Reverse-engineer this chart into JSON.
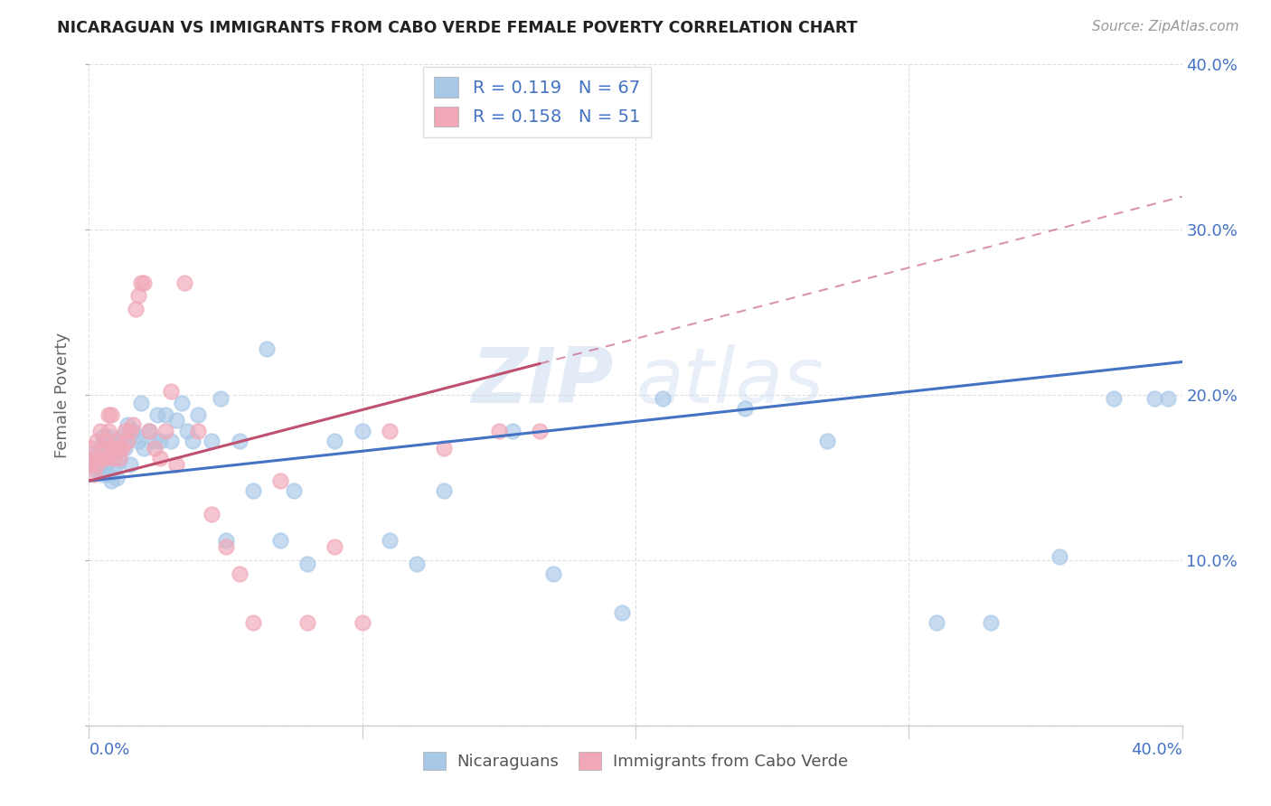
{
  "title": "NICARAGUAN VS IMMIGRANTS FROM CABO VERDE FEMALE POVERTY CORRELATION CHART",
  "source": "Source: ZipAtlas.com",
  "ylabel": "Female Poverty",
  "xlim": [
    0.0,
    0.4
  ],
  "ylim": [
    0.0,
    0.4
  ],
  "xticks": [
    0.0,
    0.1,
    0.2,
    0.3,
    0.4
  ],
  "yticks": [
    0.0,
    0.1,
    0.2,
    0.3,
    0.4
  ],
  "blue_color": "#a8c8e8",
  "pink_color": "#f0a8b8",
  "blue_line_color": "#4472c4",
  "pink_line_color": "#c05070",
  "R_blue": 0.119,
  "N_blue": 67,
  "R_pink": 0.158,
  "N_pink": 51,
  "legend_label_blue": "Nicaraguans",
  "legend_label_pink": "Immigrants from Cabo Verde",
  "blue_x": [
    0.001,
    0.002,
    0.002,
    0.003,
    0.003,
    0.004,
    0.004,
    0.005,
    0.005,
    0.005,
    0.006,
    0.006,
    0.007,
    0.007,
    0.008,
    0.008,
    0.009,
    0.009,
    0.01,
    0.01,
    0.011,
    0.012,
    0.013,
    0.014,
    0.015,
    0.016,
    0.017,
    0.018,
    0.019,
    0.02,
    0.022,
    0.024,
    0.025,
    0.026,
    0.028,
    0.03,
    0.032,
    0.034,
    0.036,
    0.038,
    0.04,
    0.045,
    0.048,
    0.05,
    0.055,
    0.06,
    0.065,
    0.07,
    0.075,
    0.08,
    0.09,
    0.1,
    0.11,
    0.12,
    0.13,
    0.155,
    0.17,
    0.195,
    0.21,
    0.24,
    0.27,
    0.31,
    0.33,
    0.355,
    0.375,
    0.39,
    0.395
  ],
  "blue_y": [
    0.16,
    0.155,
    0.165,
    0.158,
    0.162,
    0.155,
    0.168,
    0.152,
    0.175,
    0.17,
    0.158,
    0.17,
    0.152,
    0.175,
    0.148,
    0.165,
    0.155,
    0.17,
    0.15,
    0.172,
    0.16,
    0.175,
    0.168,
    0.182,
    0.158,
    0.178,
    0.175,
    0.172,
    0.195,
    0.168,
    0.178,
    0.172,
    0.188,
    0.172,
    0.188,
    0.172,
    0.185,
    0.195,
    0.178,
    0.172,
    0.188,
    0.172,
    0.198,
    0.112,
    0.172,
    0.142,
    0.228,
    0.112,
    0.142,
    0.098,
    0.172,
    0.178,
    0.112,
    0.098,
    0.142,
    0.178,
    0.092,
    0.068,
    0.198,
    0.192,
    0.172,
    0.062,
    0.062,
    0.102,
    0.198,
    0.198,
    0.198
  ],
  "pink_x": [
    0.001,
    0.001,
    0.002,
    0.002,
    0.003,
    0.003,
    0.004,
    0.004,
    0.005,
    0.005,
    0.006,
    0.006,
    0.007,
    0.007,
    0.008,
    0.008,
    0.009,
    0.009,
    0.01,
    0.01,
    0.011,
    0.011,
    0.012,
    0.013,
    0.014,
    0.015,
    0.016,
    0.017,
    0.018,
    0.019,
    0.02,
    0.022,
    0.024,
    0.026,
    0.028,
    0.03,
    0.032,
    0.035,
    0.04,
    0.045,
    0.05,
    0.055,
    0.06,
    0.07,
    0.08,
    0.09,
    0.1,
    0.11,
    0.13,
    0.15,
    0.165
  ],
  "pink_y": [
    0.168,
    0.158,
    0.162,
    0.152,
    0.172,
    0.158,
    0.178,
    0.162,
    0.168,
    0.162,
    0.172,
    0.162,
    0.188,
    0.178,
    0.188,
    0.168,
    0.168,
    0.162,
    0.172,
    0.168,
    0.168,
    0.162,
    0.168,
    0.178,
    0.172,
    0.178,
    0.182,
    0.252,
    0.26,
    0.268,
    0.268,
    0.178,
    0.168,
    0.162,
    0.178,
    0.202,
    0.158,
    0.268,
    0.178,
    0.128,
    0.108,
    0.092,
    0.062,
    0.148,
    0.062,
    0.108,
    0.062,
    0.178,
    0.168,
    0.178,
    0.178
  ],
  "blue_line_x0": 0.0,
  "blue_line_y0": 0.148,
  "blue_line_x1": 0.4,
  "blue_line_y1": 0.22,
  "pink_line_x0": 0.0,
  "pink_line_y0": 0.148,
  "pink_line_x1": 0.4,
  "pink_line_y1": 0.32,
  "watermark_zip": "ZIP",
  "watermark_atlas": "atlas",
  "background_color": "#ffffff",
  "grid_color": "#dddddd",
  "label_color": "#4472c4"
}
